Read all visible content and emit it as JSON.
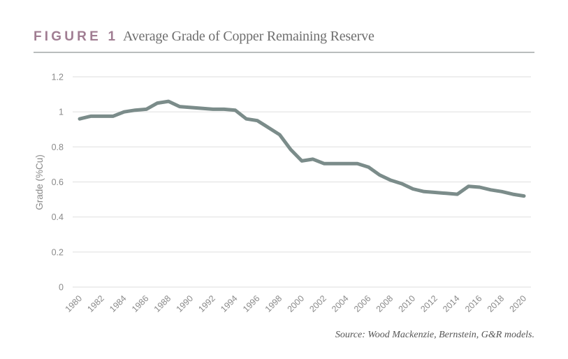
{
  "header": {
    "figure_label": "FIGURE 1",
    "title": "Average Grade of Copper Remaining Reserve"
  },
  "source": "Source: Wood Mackenzie, Bernstein, G&R models.",
  "colors": {
    "line": "#7b8c8a",
    "grid": "#e3e3e3",
    "figure_label": "#a07d92",
    "rule": "#b9bdbd"
  },
  "chart_data": {
    "type": "line",
    "title": "Average Grade of Copper Remaining Reserve",
    "xlabel": "",
    "ylabel": "Grade (%Cu)",
    "ylim": [
      0,
      1.2
    ],
    "xlim": [
      1980,
      2020
    ],
    "grid": true,
    "legend": "none",
    "y_ticks": [
      0,
      0.2,
      0.4,
      0.6,
      0.8,
      1,
      1.2
    ],
    "y_tick_labels": [
      "0",
      "0.2",
      "0.4",
      "0.6",
      "0.8",
      "1",
      "1.2"
    ],
    "x_ticks": [
      1980,
      1982,
      1984,
      1986,
      1988,
      1990,
      1992,
      1994,
      1996,
      1998,
      2000,
      2002,
      2004,
      2006,
      2008,
      2010,
      2012,
      2014,
      2016,
      2018,
      2020
    ],
    "x_tick_labels": [
      "1980",
      "1982",
      "1984",
      "1986",
      "1988",
      "1990",
      "1992",
      "1994",
      "1996",
      "1998",
      "2000",
      "2002",
      "2004",
      "2006",
      "2008",
      "2010",
      "2012",
      "2014",
      "2016",
      "2018",
      "2020"
    ],
    "x": [
      1980,
      1981,
      1982,
      1983,
      1984,
      1985,
      1986,
      1987,
      1988,
      1989,
      1990,
      1991,
      1992,
      1993,
      1994,
      1995,
      1996,
      1997,
      1998,
      1999,
      2000,
      2001,
      2002,
      2003,
      2004,
      2005,
      2006,
      2007,
      2008,
      2009,
      2010,
      2011,
      2012,
      2013,
      2014,
      2015,
      2016,
      2017,
      2018,
      2019,
      2020
    ],
    "series": [
      {
        "name": "Average grade (%Cu)",
        "values": [
          0.96,
          0.975,
          0.975,
          0.975,
          1.0,
          1.01,
          1.015,
          1.05,
          1.06,
          1.03,
          1.025,
          1.02,
          1.015,
          1.015,
          1.01,
          0.96,
          0.95,
          0.91,
          0.87,
          0.785,
          0.72,
          0.73,
          0.705,
          0.705,
          0.705,
          0.705,
          0.685,
          0.64,
          0.61,
          0.59,
          0.56,
          0.545,
          0.54,
          0.535,
          0.53,
          0.575,
          0.57,
          0.555,
          0.545,
          0.53,
          0.52
        ]
      }
    ]
  }
}
